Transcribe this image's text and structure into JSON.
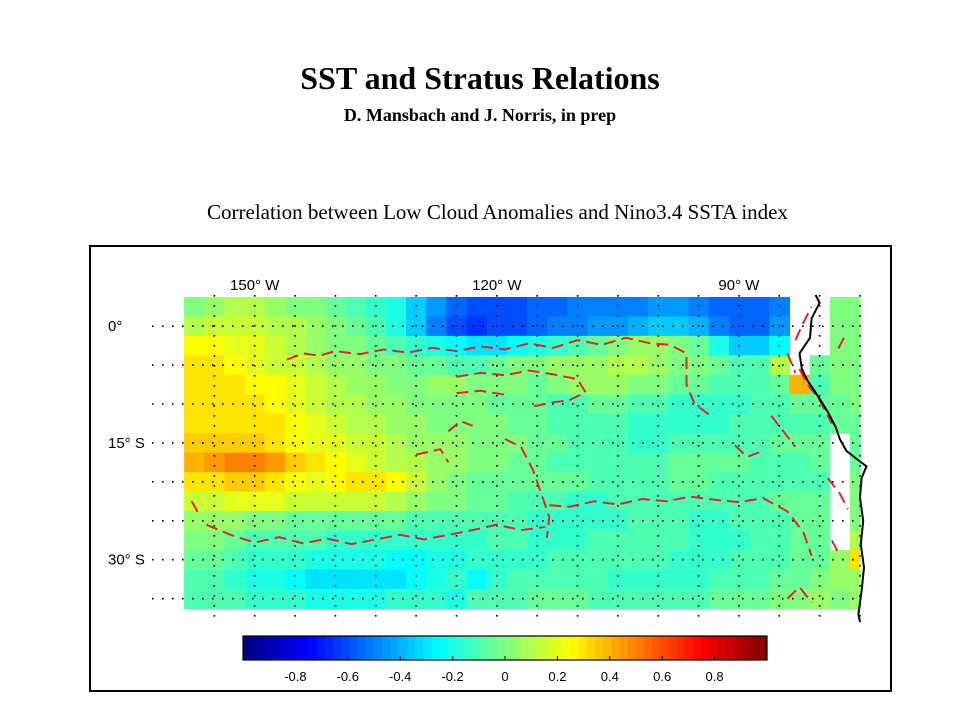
{
  "header": {
    "title": "SST and Stratus Relations",
    "subtitle": "D. Mansbach and J. Norris, in prep"
  },
  "chart_data": {
    "type": "heatmap",
    "title": "Correlation between Low Cloud Anomalies and Nino3.4 SSTA index",
    "x_tick_labels": [
      "150° W",
      "120° W",
      "90° W"
    ],
    "x_tick_values": [
      -150,
      -120,
      -90
    ],
    "y_tick_labels": [
      "0°",
      "15° S",
      "30° S"
    ],
    "y_tick_values": [
      0,
      -15,
      -30
    ],
    "xlim": [
      -160,
      -75
    ],
    "ylim": [
      -38,
      4
    ],
    "grid": true,
    "colorbar": {
      "range": [
        -1,
        1
      ],
      "tick_values": [
        -0.8,
        -0.6,
        -0.4,
        -0.2,
        0,
        0.2,
        0.4,
        0.6,
        0.8
      ],
      "tick_labels": [
        "-0.8",
        "-0.6",
        "-0.4",
        "-0.2",
        "0",
        "0.2",
        "0.4",
        "0.6",
        "0.8"
      ],
      "colormap": "jet"
    },
    "grid_resolution_deg": 2.5,
    "rows_lat_north_to_south": [
      2.5,
      0,
      -2.5,
      -5,
      -7.5,
      -10,
      -12.5,
      -15,
      -17.5,
      -20,
      -22.5,
      -25,
      -27.5,
      -30,
      -32.5,
      -35
    ],
    "cols_lon_west_to_east": [
      -157.5,
      -155,
      -152.5,
      -150,
      -147.5,
      -145,
      -142.5,
      -140,
      -137.5,
      -135,
      -132.5,
      -130,
      -127.5,
      -125,
      -122.5,
      -120,
      -117.5,
      -115,
      -112.5,
      -110,
      -107.5,
      -105,
      -102.5,
      -100,
      -97.5,
      -95,
      -92.5,
      -90,
      -87.5,
      -85,
      -82.5,
      -80,
      -77.5,
      -75
    ],
    "values": [
      [
        0.0,
        0.05,
        0.1,
        0.1,
        0.05,
        0.0,
        0.0,
        -0.05,
        -0.1,
        -0.15,
        -0.2,
        -0.35,
        -0.45,
        -0.55,
        -0.6,
        -0.6,
        -0.6,
        -0.55,
        -0.55,
        -0.5,
        -0.5,
        -0.5,
        -0.5,
        -0.45,
        -0.45,
        -0.5,
        -0.55,
        -0.55,
        -0.55,
        -0.5,
        null,
        null,
        0.0,
        0.0
      ],
      [
        0.1,
        0.15,
        0.15,
        0.15,
        0.1,
        0.1,
        0.05,
        0.0,
        -0.05,
        -0.1,
        -0.2,
        -0.35,
        -0.5,
        -0.6,
        -0.65,
        -0.6,
        -0.6,
        -0.55,
        -0.5,
        -0.5,
        -0.45,
        -0.45,
        -0.4,
        -0.35,
        -0.35,
        -0.4,
        -0.5,
        -0.55,
        -0.55,
        -0.45,
        null,
        null,
        0.0,
        0.0
      ],
      [
        0.25,
        0.25,
        0.2,
        0.2,
        0.15,
        0.1,
        0.05,
        0.0,
        0.0,
        -0.05,
        -0.1,
        -0.15,
        -0.2,
        -0.25,
        -0.3,
        -0.3,
        -0.25,
        -0.2,
        -0.15,
        -0.1,
        -0.05,
        0.0,
        0.05,
        0.05,
        0.0,
        -0.05,
        -0.2,
        -0.35,
        -0.35,
        -0.25,
        null,
        null,
        0.0,
        0.0
      ],
      [
        0.3,
        0.3,
        0.25,
        0.2,
        0.15,
        0.15,
        0.1,
        0.05,
        0.05,
        0.0,
        0.0,
        -0.05,
        -0.05,
        -0.1,
        -0.1,
        -0.05,
        0.0,
        0.0,
        0.05,
        0.05,
        0.05,
        0.1,
        0.1,
        0.05,
        0.0,
        0.0,
        -0.05,
        -0.1,
        -0.1,
        0.1,
        null,
        -0.05,
        0.0,
        0.0
      ],
      [
        0.3,
        0.3,
        0.3,
        0.25,
        0.25,
        0.2,
        0.15,
        0.1,
        0.05,
        0.05,
        0.0,
        0.0,
        0.05,
        0.05,
        0.0,
        0.0,
        0.0,
        -0.05,
        0.0,
        0.05,
        0.05,
        0.05,
        0.0,
        0.0,
        -0.05,
        -0.05,
        -0.1,
        -0.1,
        -0.1,
        -0.05,
        0.4,
        -0.1,
        0.0,
        0.0
      ],
      [
        0.3,
        0.3,
        0.3,
        0.3,
        0.25,
        0.2,
        0.15,
        0.1,
        0.1,
        0.05,
        0.05,
        0.0,
        0.0,
        0.0,
        0.0,
        -0.05,
        -0.05,
        -0.05,
        -0.1,
        -0.1,
        -0.05,
        -0.05,
        -0.1,
        -0.1,
        -0.15,
        -0.15,
        -0.15,
        -0.15,
        -0.1,
        -0.1,
        -0.05,
        -0.05,
        -0.05,
        0.0
      ],
      [
        0.3,
        0.3,
        0.3,
        0.3,
        0.3,
        0.25,
        0.2,
        0.15,
        0.1,
        0.1,
        0.05,
        0.05,
        0.0,
        0.0,
        0.0,
        0.0,
        -0.05,
        -0.05,
        -0.1,
        -0.1,
        -0.1,
        -0.1,
        -0.15,
        -0.15,
        -0.15,
        -0.15,
        -0.15,
        -0.1,
        -0.1,
        -0.1,
        -0.1,
        -0.1,
        -0.05,
        -0.05
      ],
      [
        0.35,
        0.35,
        0.35,
        0.35,
        0.3,
        0.25,
        0.2,
        0.2,
        0.15,
        0.15,
        0.1,
        0.05,
        0.05,
        0.05,
        0.0,
        0.0,
        0.0,
        -0.05,
        -0.05,
        -0.1,
        -0.1,
        -0.1,
        -0.15,
        -0.15,
        -0.1,
        -0.1,
        -0.1,
        -0.1,
        -0.1,
        -0.05,
        -0.05,
        -0.05,
        null,
        -0.05
      ],
      [
        0.4,
        0.45,
        0.5,
        0.5,
        0.45,
        0.35,
        0.3,
        0.25,
        0.2,
        0.15,
        0.1,
        0.1,
        0.05,
        0.05,
        0.0,
        0.0,
        -0.05,
        -0.05,
        -0.1,
        -0.1,
        -0.1,
        -0.1,
        -0.1,
        -0.1,
        -0.05,
        -0.05,
        -0.05,
        -0.05,
        -0.1,
        -0.1,
        -0.1,
        -0.05,
        null,
        -0.05
      ],
      [
        0.3,
        0.3,
        0.35,
        0.35,
        0.3,
        0.25,
        0.2,
        0.25,
        0.3,
        0.3,
        0.25,
        0.15,
        0.05,
        0.0,
        -0.05,
        -0.05,
        -0.05,
        -0.05,
        -0.05,
        -0.05,
        -0.1,
        -0.1,
        -0.1,
        -0.1,
        -0.05,
        -0.05,
        -0.1,
        -0.1,
        -0.1,
        -0.1,
        -0.1,
        -0.1,
        null,
        0.0
      ],
      [
        0.15,
        0.15,
        0.2,
        0.2,
        0.2,
        0.15,
        0.15,
        0.15,
        0.15,
        0.15,
        0.1,
        0.05,
        0.0,
        0.0,
        -0.05,
        -0.05,
        -0.1,
        -0.1,
        -0.1,
        -0.15,
        -0.15,
        -0.1,
        -0.1,
        -0.1,
        -0.1,
        -0.1,
        -0.1,
        -0.1,
        -0.1,
        -0.05,
        -0.05,
        -0.05,
        null,
        0.0
      ],
      [
        0.05,
        0.05,
        0.05,
        0.0,
        0.0,
        -0.05,
        -0.05,
        -0.05,
        -0.05,
        -0.05,
        -0.05,
        -0.1,
        -0.1,
        -0.1,
        -0.1,
        -0.1,
        -0.1,
        -0.15,
        -0.15,
        -0.15,
        -0.15,
        -0.15,
        -0.1,
        -0.1,
        -0.1,
        -0.15,
        -0.15,
        -0.1,
        -0.1,
        -0.1,
        -0.05,
        -0.05,
        null,
        0.0
      ],
      [
        0.0,
        0.0,
        -0.05,
        -0.1,
        -0.1,
        -0.1,
        -0.1,
        -0.15,
        -0.15,
        -0.15,
        -0.15,
        -0.15,
        -0.15,
        -0.15,
        -0.15,
        -0.1,
        -0.1,
        -0.15,
        -0.15,
        -0.15,
        -0.1,
        -0.1,
        -0.1,
        -0.1,
        -0.1,
        -0.15,
        -0.15,
        -0.15,
        -0.1,
        -0.1,
        -0.05,
        -0.05,
        null,
        0.1
      ],
      [
        -0.05,
        -0.05,
        -0.1,
        -0.15,
        -0.15,
        -0.15,
        -0.2,
        -0.2,
        -0.2,
        -0.2,
        -0.25,
        -0.25,
        -0.2,
        -0.2,
        -0.15,
        -0.15,
        -0.15,
        -0.15,
        -0.1,
        -0.1,
        -0.1,
        -0.1,
        -0.1,
        -0.1,
        -0.15,
        -0.15,
        -0.15,
        -0.1,
        -0.1,
        -0.1,
        -0.05,
        -0.05,
        0.05,
        0.3
      ],
      [
        -0.1,
        -0.1,
        -0.15,
        -0.2,
        -0.2,
        -0.25,
        -0.3,
        -0.3,
        -0.3,
        -0.3,
        -0.3,
        -0.25,
        -0.2,
        -0.15,
        -0.25,
        -0.15,
        -0.1,
        -0.1,
        -0.1,
        -0.1,
        -0.1,
        -0.15,
        -0.15,
        -0.15,
        -0.15,
        -0.15,
        -0.1,
        -0.1,
        -0.1,
        -0.05,
        -0.05,
        0.0,
        0.05,
        0.05
      ],
      [
        -0.1,
        -0.1,
        -0.1,
        -0.15,
        -0.15,
        -0.15,
        -0.2,
        -0.2,
        -0.2,
        -0.2,
        -0.15,
        -0.15,
        -0.15,
        -0.2,
        -0.1,
        -0.1,
        -0.1,
        -0.05,
        -0.05,
        -0.05,
        -0.1,
        -0.1,
        -0.1,
        -0.1,
        -0.1,
        -0.1,
        -0.05,
        -0.05,
        -0.05,
        0.0,
        0.0,
        0.05,
        0.0,
        0.05
      ]
    ],
    "zero_contours": [
      [
        [
          -146,
          -4.3
        ],
        [
          -144,
          -3.5
        ],
        [
          -142,
          -3.8
        ],
        [
          -140,
          -3.2
        ],
        [
          -137,
          -3.6
        ],
        [
          -134,
          -3.0
        ],
        [
          -131,
          -3.4
        ],
        [
          -128,
          -2.8
        ],
        [
          -125,
          -3.2
        ],
        [
          -122,
          -2.6
        ],
        [
          -119,
          -3.0
        ],
        [
          -116,
          -2.2
        ],
        [
          -113,
          -2.8
        ],
        [
          -110,
          -1.8
        ],
        [
          -107,
          -2.4
        ],
        [
          -104,
          -1.5
        ],
        [
          -101,
          -2.2
        ],
        [
          -98.5,
          -2.4
        ],
        [
          -96.5,
          -3.5
        ],
        [
          -96.5,
          -7.5
        ],
        [
          -95.5,
          -10
        ],
        [
          -93.5,
          -11.5
        ]
      ],
      [
        [
          -125,
          -6.5
        ],
        [
          -122,
          -6.0
        ],
        [
          -119,
          -6.3
        ],
        [
          -116,
          -5.7
        ],
        [
          -113,
          -6.2
        ],
        [
          -110,
          -6.8
        ],
        [
          -109,
          -8.5
        ],
        [
          -111,
          -9.5
        ],
        [
          -113,
          -9.8
        ],
        [
          -115.5,
          -10.3
        ]
      ],
      [
        [
          -125,
          -8.6
        ],
        [
          -122,
          -8.3
        ],
        [
          -119,
          -8.8
        ]
      ],
      [
        [
          -126,
          -13.5
        ],
        [
          -124.5,
          -12.2
        ],
        [
          -123,
          -12.8
        ]
      ],
      [
        [
          -130,
          -16.5
        ],
        [
          -127,
          -15.8
        ],
        [
          -126,
          -17.5
        ]
      ],
      [
        [
          -119,
          -14.5
        ],
        [
          -117,
          -15.5
        ],
        [
          -115.5,
          -18.5
        ],
        [
          -114.5,
          -21.5
        ],
        [
          -113.5,
          -24.5
        ],
        [
          -113.8,
          -27.2
        ]
      ],
      [
        [
          -113.5,
          -23
        ],
        [
          -111,
          -23.2
        ],
        [
          -108,
          -22.5
        ],
        [
          -105,
          -22.9
        ],
        [
          -102,
          -22.2
        ],
        [
          -99,
          -22.5
        ],
        [
          -96,
          -21.9
        ],
        [
          -93,
          -22.3
        ],
        [
          -90,
          -22.6
        ],
        [
          -87,
          -22.1
        ],
        [
          -84,
          -23.8
        ],
        [
          -82,
          -26.5
        ],
        [
          -81,
          -29.5
        ]
      ],
      [
        [
          -156,
          -25.5
        ],
        [
          -153,
          -26.8
        ],
        [
          -150,
          -27.8
        ],
        [
          -147,
          -27.1
        ],
        [
          -144,
          -27.9
        ],
        [
          -141,
          -27.3
        ],
        [
          -138,
          -28
        ],
        [
          -135,
          -27.4
        ],
        [
          -132,
          -26.8
        ],
        [
          -129,
          -27.4
        ],
        [
          -126,
          -26.8
        ],
        [
          -123,
          -26.2
        ],
        [
          -120,
          -25.5
        ],
        [
          -117,
          -26.2
        ],
        [
          -114,
          -25.8
        ]
      ],
      [
        [
          -157.8,
          -22.5
        ],
        [
          -157,
          -24
        ]
      ],
      [
        [
          -90.5,
          -15.3
        ],
        [
          -89,
          -16.8
        ],
        [
          -87.5,
          -16.2
        ]
      ],
      [
        [
          -86,
          -11.5
        ],
        [
          -84.5,
          -13.5
        ],
        [
          -83,
          -15.5
        ]
      ],
      [
        [
          -82.5,
          -5.5
        ],
        [
          -81.5,
          -7.5
        ],
        [
          -80,
          -9.5
        ],
        [
          -78.5,
          -12.5
        ]
      ],
      [
        [
          -84,
          -3.5
        ],
        [
          -83,
          -6.0
        ]
      ],
      [
        [
          -83,
          -1.8
        ],
        [
          -82,
          0.5
        ],
        [
          -81,
          2.5
        ]
      ],
      [
        [
          -77,
          -1.5
        ],
        [
          -78,
          -3.5
        ]
      ],
      [
        [
          -79,
          -19.5
        ],
        [
          -77.5,
          -21.5
        ],
        [
          -76.5,
          -23.5
        ]
      ],
      [
        [
          -78.5,
          -27.5
        ],
        [
          -77.5,
          -29.5
        ]
      ],
      [
        [
          -84,
          -35.0
        ],
        [
          -82.5,
          -33.5
        ],
        [
          -81,
          -35.5
        ]
      ]
    ],
    "coastline": [
      [
        -80.5,
        4
      ],
      [
        -80,
        3
      ],
      [
        -81,
        1
      ],
      [
        -81.2,
        -1.5
      ],
      [
        -82.5,
        -3.5
      ],
      [
        -82.2,
        -5.5
      ],
      [
        -81.5,
        -7
      ],
      [
        -80.2,
        -9
      ],
      [
        -79,
        -11
      ],
      [
        -78,
        -13
      ],
      [
        -77.5,
        -14.5
      ],
      [
        -76.7,
        -16
      ],
      [
        -75.5,
        -17
      ],
      [
        -74.2,
        -18
      ],
      [
        -74.8,
        -19.5
      ],
      [
        -75,
        -22
      ],
      [
        -74.6,
        -25
      ],
      [
        -74.9,
        -28
      ],
      [
        -74.5,
        -31
      ],
      [
        -74.8,
        -34
      ],
      [
        -75.2,
        -37
      ],
      [
        -75,
        -38
      ]
    ]
  }
}
